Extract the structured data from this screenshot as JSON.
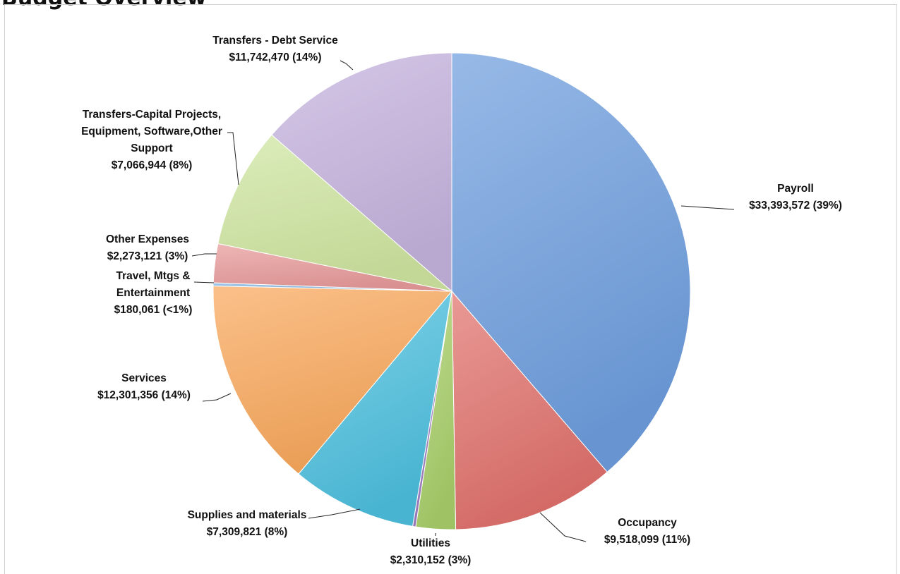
{
  "page": {
    "title": "Budget Overview"
  },
  "chart_data": {
    "type": "pie",
    "title": "",
    "start_angle_deg": 0,
    "direction": "clockwise",
    "slices": [
      {
        "label": "Payroll",
        "value": 33393572,
        "value_text": "$33,393,572",
        "percent_text": "(39%)",
        "label_text": "$33,393,572  (39%)",
        "color": "#6f9ede"
      },
      {
        "label": "Occupancy",
        "value": 9518099,
        "value_text": "$9,518,099",
        "percent_text": "(11%)",
        "label_text": "$9,518,099 (11%)",
        "color": "#e0716c"
      },
      {
        "label": "Utilities",
        "value": 2310152,
        "value_text": "$2,310,152",
        "percent_text": "(3%)",
        "label_text": "$2,310,152  (3%)",
        "color": "#a9cf6a"
      },
      {
        "label": "",
        "value": 180000,
        "value_text": "",
        "percent_text": "",
        "label_text": "",
        "color": "#9b79c0"
      },
      {
        "label": "Supplies and materials",
        "value": 7309821,
        "value_text": "$7,309,821",
        "percent_text": "(8%)",
        "label_text": "$7,309,821 (8%)",
        "color": "#4dc0de"
      },
      {
        "label": "Services",
        "value": 12301356,
        "value_text": "$12,301,356",
        "percent_text": "(14%)",
        "label_text": "$12,301,356  (14%)",
        "color": "#f9a85b"
      },
      {
        "label": "Travel, Mtgs & Entertainment",
        "value": 180061,
        "value_text": "$180,061",
        "percent_text": "(<1%)",
        "label_text": "$180,061 (<1%)",
        "color": "#82b4e0"
      },
      {
        "label": "Other Expenses",
        "value": 2273121,
        "value_text": "$2,273,121",
        "percent_text": "(3%)",
        "label_text": "$2,273,121 (3%)",
        "color": "#e89a9a"
      },
      {
        "label": "Transfers-Capital Projects, Equipment, Software,Other Support",
        "value": 7066944,
        "value_text": "$7,066,944",
        "percent_text": "(8%)",
        "label_text": "$7,066,944 (8%)",
        "color": "#cfe6a1"
      },
      {
        "label": "Transfers - Debt Service",
        "value": 11742470,
        "value_text": "$11,742,470",
        "percent_text": "(14%)",
        "label_text": "$11,742,470 (14%)",
        "color": "#c5b3dd"
      }
    ],
    "labels": [
      {
        "lines": [
          "Payroll",
          "$33,393,572  (39%)"
        ]
      },
      {
        "lines": [
          "Occupancy",
          "$9,518,099 (11%)"
        ]
      },
      {
        "lines": [
          "Utilities",
          "$2,310,152  (3%)"
        ]
      },
      {
        "lines": [
          "Supplies and materials",
          "$7,309,821 (8%)"
        ]
      },
      {
        "lines": [
          "Services",
          "$12,301,356  (14%)"
        ]
      },
      {
        "lines": [
          "Travel, Mtgs &",
          "Entertainment",
          "$180,061 (<1%)"
        ]
      },
      {
        "lines": [
          "Other Expenses",
          "$2,273,121 (3%)"
        ]
      },
      {
        "lines": [
          "Transfers-Capital Projects,",
          "Equipment, Software,Other",
          "Support",
          "$7,066,944 (8%)"
        ]
      },
      {
        "lines": [
          "Transfers - Debt Service",
          "$11,742,470 (14%)"
        ]
      }
    ]
  }
}
